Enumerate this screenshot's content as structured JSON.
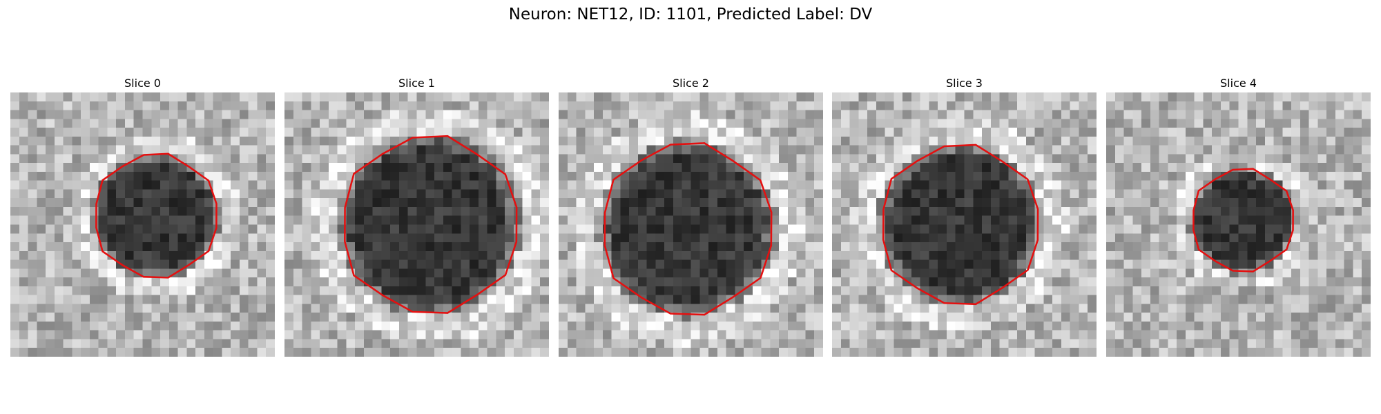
{
  "title": "Neuron: NET12, ID: 1101, Predicted Label: DV",
  "panels": [
    {
      "title": "Slice 0"
    },
    {
      "title": "Slice 1"
    },
    {
      "title": "Slice 2"
    },
    {
      "title": "Slice 3"
    },
    {
      "title": "Slice 4"
    }
  ]
}
